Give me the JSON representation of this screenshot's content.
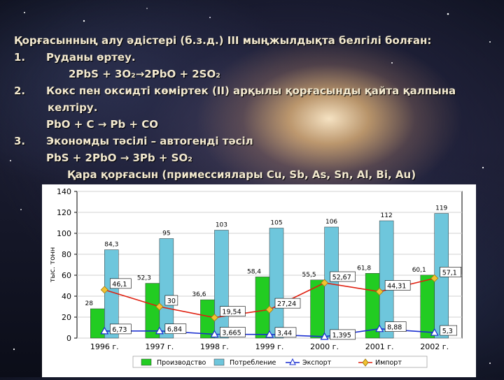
{
  "text": {
    "title": "Қорғасынның алу әдістері (б.з.д.) III мыңжылдықта белгілі болған:",
    "item1_num": "1.",
    "item1": "Руданы өртеу.",
    "eq1": "2PbS + 3O₂→2PbO + 2SO₂",
    "item2_num": "2.",
    "item2a": "Кокс пен оксидті көміртек (II) арқылы қорғасынды қайта қалпына",
    "item2b": "келтіру.",
    "eq2": "PbO + C → Pb + CO",
    "item3_num": "3.",
    "item3": "Экономды тәсілі – автогенді тәсіл",
    "eq3": "PbS + 2PbO → 3Pb + SO₂",
    "note": "Қара қорғасын (примессиялары Cu, Sb, As, Sn, Al, Bi, Au)"
  },
  "chart_data": {
    "type": "bar",
    "categories": [
      "1996 г.",
      "1997 г.",
      "1998 г.",
      "1999 г.",
      "2000 г.",
      "2001 г.",
      "2002 г."
    ],
    "ylabel": "тыс. тонн",
    "ylim": [
      0,
      140
    ],
    "yticks": [
      0,
      20,
      40,
      60,
      80,
      100,
      120,
      140
    ],
    "grid": true,
    "legend_position": "bottom",
    "series": [
      {
        "name": "Производство",
        "kind": "bar",
        "color": "#22cc22",
        "values": [
          28,
          52.3,
          36.6,
          58.4,
          55.5,
          61.8,
          60.1
        ],
        "labels": [
          "28",
          "52,3",
          "36,6",
          "58,4",
          "55,5",
          "61,8",
          "60,1"
        ]
      },
      {
        "name": "Потребление",
        "kind": "bar",
        "color": "#6ec6dc",
        "values": [
          84.3,
          95,
          103,
          105,
          106,
          112,
          119
        ],
        "labels": [
          "84,3",
          "95",
          "103",
          "105",
          "106",
          "112",
          "119"
        ]
      },
      {
        "name": "Экспорт",
        "kind": "line",
        "color": "#1a2fd0",
        "values": [
          6.73,
          6.84,
          3.665,
          3.44,
          1.395,
          8.88,
          5.3
        ],
        "labels": [
          "6,73",
          "6,84",
          "3,665",
          "3,44",
          "1,395",
          "8,88",
          "5,3"
        ]
      },
      {
        "name": "Импорт",
        "kind": "line",
        "color": "#e02010",
        "values": [
          46.1,
          30,
          19.54,
          27.24,
          52.67,
          44.31,
          57.1
        ],
        "labels": [
          "46,1",
          "30",
          "19,54",
          "27,24",
          "52,67",
          "44,31",
          "57,1"
        ]
      }
    ]
  }
}
